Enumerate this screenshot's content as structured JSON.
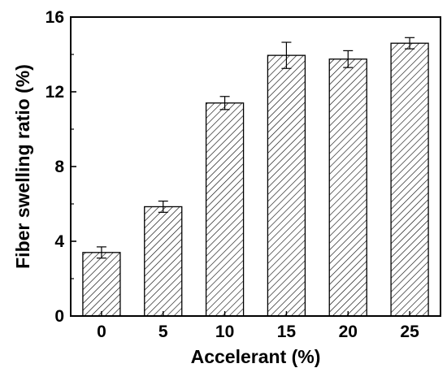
{
  "chart_data": {
    "type": "bar",
    "xlabel": "Accelerant (%)",
    "ylabel": "Fiber swelling ratio (%)",
    "categories": [
      "0",
      "5",
      "10",
      "15",
      "20",
      "25"
    ],
    "values": [
      3.4,
      5.85,
      11.4,
      13.95,
      13.75,
      14.6
    ],
    "errors": [
      0.3,
      0.3,
      0.35,
      0.7,
      0.45,
      0.3
    ],
    "ylim": [
      0,
      16
    ],
    "yticks": [
      "0",
      "4",
      "8",
      "12",
      "16"
    ],
    "grid": false,
    "legend": "none",
    "bar_fill": "diagonal-hatch",
    "colors": {
      "bar_stroke": "#000000",
      "hatch": "#000000",
      "axis": "#000000",
      "background": "#ffffff"
    }
  }
}
